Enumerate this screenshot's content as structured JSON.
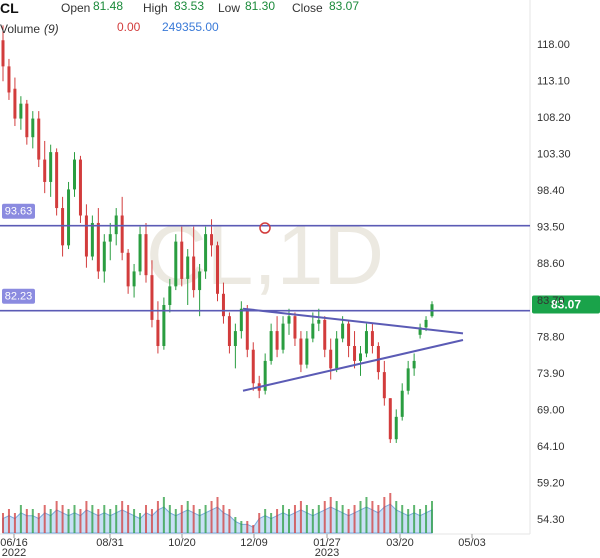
{
  "header": {
    "symbol": "CL",
    "open_label": "Open",
    "open_value": "81.48",
    "high_label": "High",
    "high_value": "83.53",
    "low_label": "Low",
    "low_value": "81.30",
    "close_label": "Close",
    "close_value": "83.07",
    "volume_label": "Volume",
    "volume_period": "(9)",
    "volume_value1": "0.00",
    "volume_value2": "249355.00"
  },
  "watermark": "CL,1D",
  "colors": {
    "up": "#2a9d40",
    "down": "#d23c3c",
    "line": "#5b5bb5",
    "price_tag": "#1aa34a",
    "label_tag": "#8b8be0",
    "volume_area": "#9cc4ee",
    "value_green": "#1a8a3a",
    "value_red": "#d23c3c",
    "value_blue": "#3a7ad8"
  },
  "horizontal_levels": [
    {
      "label": "93.63",
      "value": 93.63
    },
    {
      "label": "82.23",
      "value": 82.23
    }
  ],
  "last_price_label": "83.07",
  "chart_data": {
    "type": "candlestick",
    "title": "CL",
    "interval": "1D",
    "ylim": [
      52.0,
      121.0
    ],
    "y_ticks": [
      "118.00",
      "113.10",
      "108.20",
      "103.30",
      "98.40",
      "93.50",
      "88.60",
      "83.70",
      "78.80",
      "73.90",
      "69.00",
      "64.10",
      "59.20",
      "54.30"
    ],
    "x_ticks": [
      "06/16",
      "08/31",
      "10/20",
      "12/09",
      "01/27",
      "03/20",
      "05/03"
    ],
    "x_tick_sublabels": [
      "2022",
      "",
      "",
      "",
      "2023",
      "",
      ""
    ],
    "x_range_days": [
      0,
      331
    ],
    "start_date": "2022-06-16",
    "ohlc": [
      [
        0,
        118.5,
        120.5,
        113.0,
        115.0
      ],
      [
        1,
        115.0,
        116.0,
        110.5,
        111.5
      ],
      [
        2,
        112.0,
        113.5,
        107.0,
        108.0
      ],
      [
        3,
        108.0,
        111.0,
        106.5,
        110.0
      ],
      [
        4,
        110.0,
        110.5,
        104.5,
        105.5
      ],
      [
        5,
        105.5,
        109.0,
        104.0,
        108.0
      ],
      [
        6,
        108.0,
        109.0,
        101.5,
        102.5
      ],
      [
        7,
        102.5,
        105.0,
        98.0,
        99.5
      ],
      [
        8,
        99.5,
        104.5,
        97.5,
        103.5
      ],
      [
        9,
        103.5,
        104.0,
        95.0,
        96.0
      ],
      [
        10,
        96.0,
        97.5,
        89.5,
        91.0
      ],
      [
        11,
        91.0,
        99.5,
        90.5,
        98.5
      ],
      [
        12,
        98.5,
        103.5,
        97.5,
        102.5
      ],
      [
        13,
        102.5,
        103.0,
        94.0,
        95.0
      ],
      [
        14,
        95.0,
        96.5,
        88.0,
        89.5
      ],
      [
        15,
        89.5,
        95.0,
        89.0,
        94.0
      ],
      [
        16,
        94.0,
        96.0,
        86.5,
        87.5
      ],
      [
        17,
        87.5,
        92.5,
        86.0,
        91.5
      ],
      [
        18,
        91.5,
        94.0,
        89.0,
        92.5
      ],
      [
        19,
        92.5,
        96.0,
        91.0,
        95.0
      ],
      [
        20,
        95.0,
        97.5,
        89.0,
        90.0
      ],
      [
        21,
        90.0,
        90.5,
        84.5,
        85.5
      ],
      [
        22,
        85.5,
        88.5,
        84.0,
        87.5
      ],
      [
        23,
        87.5,
        93.5,
        87.0,
        92.5
      ],
      [
        24,
        92.5,
        94.0,
        86.0,
        87.0
      ],
      [
        25,
        87.0,
        89.0,
        80.0,
        81.0
      ],
      [
        26,
        81.0,
        83.5,
        76.5,
        77.5
      ],
      [
        27,
        77.5,
        84.0,
        77.0,
        83.0
      ],
      [
        28,
        83.0,
        86.5,
        82.0,
        85.5
      ],
      [
        29,
        85.5,
        92.5,
        85.0,
        91.5
      ],
      [
        30,
        91.5,
        93.5,
        85.5,
        86.5
      ],
      [
        31,
        86.5,
        90.5,
        83.0,
        89.5
      ],
      [
        32,
        89.5,
        93.5,
        84.0,
        85.0
      ],
      [
        33,
        85.0,
        88.5,
        81.5,
        87.5
      ],
      [
        34,
        87.5,
        93.5,
        86.5,
        92.5
      ],
      [
        35,
        92.5,
        94.5,
        89.5,
        91.0
      ],
      [
        36,
        91.0,
        91.5,
        83.5,
        84.5
      ],
      [
        37,
        84.5,
        86.0,
        80.5,
        81.5
      ],
      [
        38,
        81.5,
        82.0,
        76.5,
        77.5
      ],
      [
        39,
        77.5,
        80.5,
        74.5,
        79.5
      ],
      [
        40,
        79.5,
        83.5,
        78.5,
        82.5
      ],
      [
        41,
        82.5,
        83.0,
        76.0,
        77.0
      ],
      [
        42,
        77.0,
        78.0,
        71.5,
        72.5
      ],
      [
        43,
        72.5,
        73.5,
        70.5,
        71.5
      ],
      [
        44,
        71.5,
        76.5,
        71.0,
        75.5
      ],
      [
        45,
        75.5,
        80.5,
        75.0,
        79.5
      ],
      [
        46,
        79.5,
        81.5,
        76.0,
        77.0
      ],
      [
        47,
        77.0,
        81.5,
        76.5,
        80.5
      ],
      [
        48,
        80.5,
        82.5,
        79.0,
        81.5
      ],
      [
        49,
        81.5,
        82.0,
        77.5,
        78.5
      ],
      [
        50,
        78.5,
        79.5,
        74.0,
        75.0
      ],
      [
        51,
        75.0,
        79.5,
        74.5,
        78.5
      ],
      [
        52,
        78.5,
        82.0,
        78.0,
        80.5
      ],
      [
        53,
        80.5,
        82.5,
        79.5,
        81.0
      ],
      [
        54,
        81.0,
        81.5,
        76.0,
        77.0
      ],
      [
        55,
        77.0,
        78.5,
        73.0,
        74.5
      ],
      [
        56,
        74.5,
        79.5,
        74.0,
        78.5
      ],
      [
        57,
        78.5,
        81.5,
        78.0,
        80.5
      ],
      [
        58,
        80.5,
        81.0,
        76.0,
        77.5
      ],
      [
        59,
        77.5,
        79.5,
        74.5,
        75.5
      ],
      [
        60,
        75.5,
        77.5,
        73.5,
        76.5
      ],
      [
        61,
        76.5,
        80.5,
        76.0,
        79.5
      ],
      [
        62,
        79.5,
        80.5,
        76.5,
        77.5
      ],
      [
        63,
        77.5,
        78.0,
        73.0,
        74.0
      ],
      [
        64,
        74.0,
        75.5,
        69.5,
        70.5
      ],
      [
        65,
        70.5,
        70.5,
        64.5,
        65.0
      ],
      [
        66,
        65.0,
        69.0,
        64.5,
        68.0
      ],
      [
        67,
        68.0,
        72.5,
        67.5,
        71.5
      ],
      [
        68,
        71.5,
        75.5,
        71.0,
        74.5
      ],
      [
        69,
        74.5,
        76.5,
        73.5,
        75.5
      ],
      [
        70,
        79.0,
        80.5,
        78.5,
        80.0
      ],
      [
        71,
        80.0,
        81.5,
        79.5,
        81.0
      ],
      [
        72,
        81.5,
        83.5,
        81.3,
        83.1
      ]
    ],
    "volume": [
      5,
      6,
      5,
      7,
      6,
      6,
      5,
      7,
      6,
      8,
      7,
      6,
      7,
      6,
      8,
      7,
      6,
      7,
      6,
      7,
      8,
      7,
      6,
      5,
      7,
      6,
      8,
      9,
      7,
      6,
      7,
      8,
      7,
      6,
      7,
      8,
      9,
      7,
      6,
      4,
      3,
      3,
      2,
      5,
      6,
      5,
      6,
      7,
      6,
      7,
      8,
      7,
      6,
      7,
      8,
      9,
      8,
      7,
      6,
      7,
      8,
      9,
      8,
      7,
      9,
      10,
      8,
      7,
      6,
      7,
      6,
      7,
      8
    ],
    "trendlines": [
      {
        "from": [
          220,
          82.5
        ],
        "to": [
          412,
          79.2
        ]
      },
      {
        "from": [
          220,
          71.5
        ],
        "to": [
          412,
          78.3
        ]
      }
    ]
  }
}
